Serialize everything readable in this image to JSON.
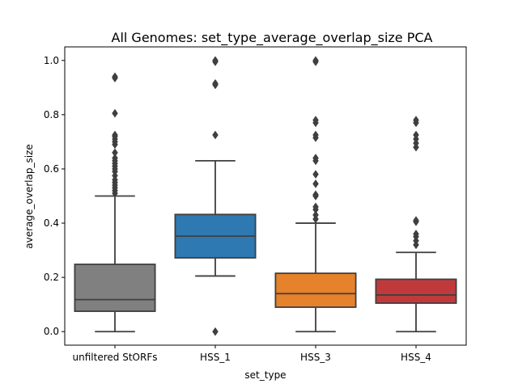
{
  "chart_data": {
    "type": "box",
    "title": "All Genomes: set_type_average_overlap_size PCA",
    "xlabel": "set_type",
    "ylabel": "average_overlap_size",
    "ylim": [
      -0.05,
      1.05
    ],
    "yticks": [
      0.0,
      0.2,
      0.4,
      0.6,
      0.8,
      1.0
    ],
    "ytick_labels": [
      "0.0",
      "0.2",
      "0.4",
      "0.6",
      "0.8",
      "1.0"
    ],
    "categories": [
      "unfiltered StORFs",
      "HSS_1",
      "HSS_3",
      "HSS_4"
    ],
    "boxes": [
      {
        "category": "unfiltered StORFs",
        "color": "#808080",
        "whisker_low": 0.0,
        "q1": 0.075,
        "median": 0.118,
        "q3": 0.248,
        "whisker_high": 0.5,
        "outliers": [
          0.51,
          0.52,
          0.53,
          0.54,
          0.55,
          0.56,
          0.575,
          0.59,
          0.6,
          0.61,
          0.62,
          0.63,
          0.64,
          0.66,
          0.69,
          0.7,
          0.71,
          0.72,
          0.725,
          0.805,
          0.935,
          0.94
        ]
      },
      {
        "category": "HSS_1",
        "color": "#2e79b2",
        "whisker_low": 0.205,
        "q1": 0.272,
        "median": 0.352,
        "q3": 0.432,
        "whisker_high": 0.63,
        "outliers": [
          0.0,
          0.725,
          0.91,
          0.915,
          0.995,
          1.0
        ]
      },
      {
        "category": "HSS_3",
        "color": "#e5822b",
        "whisker_low": 0.0,
        "q1": 0.09,
        "median": 0.14,
        "q3": 0.215,
        "whisker_high": 0.4,
        "outliers": [
          0.415,
          0.43,
          0.45,
          0.46,
          0.5,
          0.505,
          0.545,
          0.58,
          0.63,
          0.64,
          0.715,
          0.725,
          0.77,
          0.78,
          0.995,
          1.0
        ]
      },
      {
        "category": "HSS_4",
        "color": "#c03a3b",
        "whisker_low": 0.0,
        "q1": 0.105,
        "median": 0.135,
        "q3": 0.193,
        "whisker_high": 0.292,
        "outliers": [
          0.32,
          0.335,
          0.35,
          0.36,
          0.405,
          0.41,
          0.68,
          0.695,
          0.71,
          0.725,
          0.77,
          0.78
        ]
      }
    ],
    "grid": false,
    "legend": "none"
  }
}
